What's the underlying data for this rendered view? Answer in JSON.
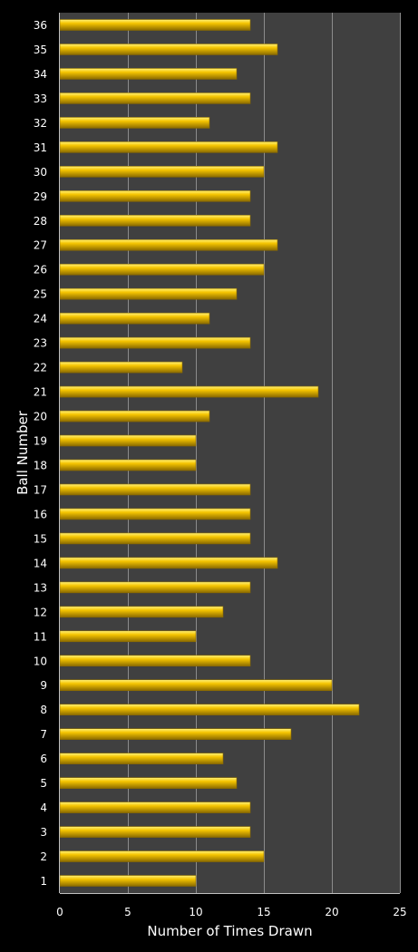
{
  "chart_data": {
    "type": "bar",
    "orientation": "horizontal",
    "title": "",
    "xlabel": "Number of Times Drawn",
    "ylabel": "Ball Number",
    "xlim": [
      0,
      25
    ],
    "x_ticks": [
      0,
      5,
      10,
      15,
      20,
      25
    ],
    "grid": true,
    "legend": "none",
    "categories": [
      "1",
      "2",
      "3",
      "4",
      "5",
      "6",
      "7",
      "8",
      "9",
      "10",
      "11",
      "12",
      "13",
      "14",
      "15",
      "16",
      "17",
      "18",
      "19",
      "20",
      "21",
      "22",
      "23",
      "24",
      "25",
      "26",
      "27",
      "28",
      "29",
      "30",
      "31",
      "32",
      "33",
      "34",
      "35",
      "36"
    ],
    "values": [
      10,
      15,
      14,
      14,
      13,
      12,
      17,
      22,
      20,
      14,
      10,
      12,
      14,
      16,
      14,
      14,
      14,
      10,
      10,
      11,
      19,
      9,
      14,
      11,
      13,
      15,
      16,
      14,
      14,
      15,
      16,
      11,
      14,
      13,
      16,
      14
    ],
    "colors": {
      "background": "#000000",
      "plot_area": "#404040",
      "gridline": "#8c8c8c",
      "bar_fill": "#f5c400",
      "bar_highlight": "#fff27a",
      "bar_edge": "#8a6a00",
      "text": "#ffffff"
    }
  }
}
